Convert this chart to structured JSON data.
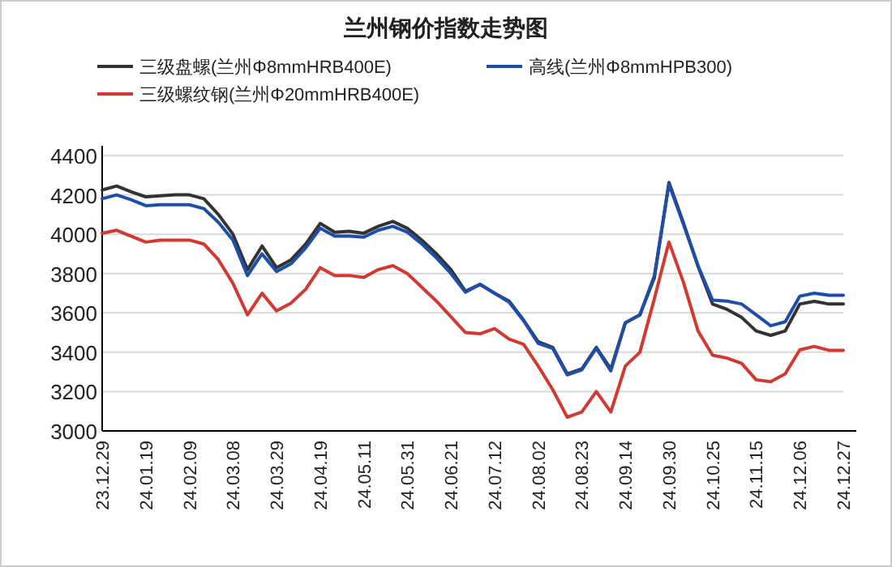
{
  "chart_data": {
    "type": "line",
    "title": "兰州钢价指数走势图",
    "categories": [
      "23.12.29",
      null,
      null,
      "24.01.19",
      null,
      null,
      "24.02.09",
      null,
      null,
      "24.03.08",
      null,
      null,
      "24.03.29",
      null,
      null,
      "24.04.19",
      null,
      null,
      "24.05.11",
      null,
      null,
      "24.05.31",
      null,
      null,
      "24.06.21",
      null,
      null,
      "24.07.12",
      null,
      null,
      "24.08.02",
      null,
      null,
      "24.08.23",
      null,
      null,
      "24.09.14",
      null,
      null,
      "24.09.30",
      null,
      null,
      "24.10.25",
      null,
      null,
      "24.11.15",
      null,
      null,
      "24.12.06",
      null,
      null,
      "24.12.27"
    ],
    "series": [
      {
        "name": "三级盘螺(兰州Φ8mmHRB400E)",
        "color": "#333333",
        "values": [
          4225,
          4245,
          4215,
          4190,
          4195,
          4200,
          4200,
          4180,
          4100,
          4000,
          3820,
          3940,
          3830,
          3870,
          3950,
          4055,
          4010,
          4015,
          4005,
          4040,
          4065,
          4030,
          3970,
          3900,
          3820,
          3710,
          3745,
          3700,
          3660,
          3563,
          3453,
          3425,
          3290,
          3315,
          3425,
          3315,
          3550,
          3590,
          3780,
          4263,
          4057,
          3837,
          3645,
          3618,
          3577,
          3508,
          3486,
          3508,
          3645,
          3659,
          3645,
          3645
        ]
      },
      {
        "name": "高线(兰州Φ8mmHPB300)",
        "color": "#1f4ea8",
        "values": [
          4180,
          4200,
          4175,
          4145,
          4150,
          4150,
          4150,
          4130,
          4060,
          3970,
          3790,
          3900,
          3810,
          3850,
          3930,
          4030,
          3990,
          3990,
          3985,
          4020,
          4040,
          4010,
          3950,
          3880,
          3800,
          3705,
          3745,
          3700,
          3655,
          3560,
          3445,
          3420,
          3285,
          3310,
          3420,
          3305,
          3550,
          3590,
          3790,
          4255,
          4050,
          3840,
          3665,
          3660,
          3645,
          3590,
          3535,
          3555,
          3685,
          3700,
          3690,
          3690
        ]
      },
      {
        "name": "三级螺纹钢(兰州Φ20mmHRB400E)",
        "color": "#d03a32",
        "values": [
          4005,
          4020,
          3990,
          3960,
          3970,
          3970,
          3970,
          3950,
          3870,
          3750,
          3590,
          3700,
          3610,
          3650,
          3720,
          3830,
          3790,
          3790,
          3780,
          3820,
          3840,
          3800,
          3730,
          3660,
          3580,
          3500,
          3494,
          3520,
          3467,
          3440,
          3330,
          3210,
          3070,
          3096,
          3200,
          3096,
          3330,
          3400,
          3673,
          3960,
          3755,
          3508,
          3385,
          3370,
          3343,
          3260,
          3250,
          3290,
          3412,
          3430,
          3410,
          3410
        ]
      }
    ],
    "ylim": [
      3000,
      4400
    ],
    "yticks": [
      3000,
      3200,
      3400,
      3600,
      3800,
      4000,
      4200,
      4400
    ],
    "grid": "y",
    "legend": "top"
  }
}
